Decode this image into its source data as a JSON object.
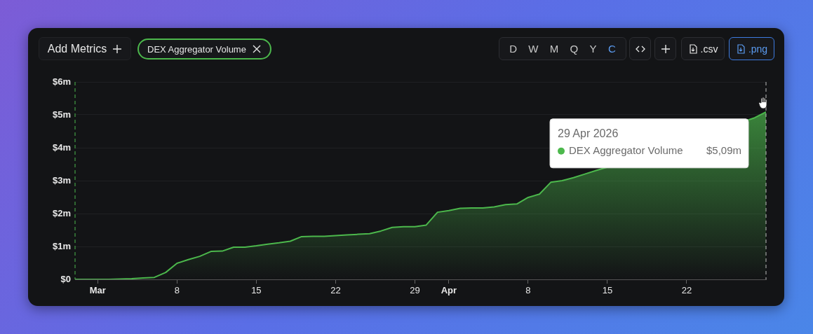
{
  "chart_data": {
    "type": "area",
    "x": [
      "2026-02-27",
      "2026-02-28",
      "2026-03-01",
      "2026-03-02",
      "2026-03-03",
      "2026-03-04",
      "2026-03-05",
      "2026-03-06",
      "2026-03-07",
      "2026-03-08",
      "2026-03-09",
      "2026-03-10",
      "2026-03-11",
      "2026-03-12",
      "2026-03-13",
      "2026-03-14",
      "2026-03-15",
      "2026-03-16",
      "2026-03-17",
      "2026-03-18",
      "2026-03-19",
      "2026-03-20",
      "2026-03-21",
      "2026-03-22",
      "2026-03-23",
      "2026-03-24",
      "2026-03-25",
      "2026-03-26",
      "2026-03-27",
      "2026-03-28",
      "2026-03-29",
      "2026-03-30",
      "2026-03-31",
      "2026-04-01",
      "2026-04-02",
      "2026-04-03",
      "2026-04-04",
      "2026-04-05",
      "2026-04-06",
      "2026-04-07",
      "2026-04-08",
      "2026-04-09",
      "2026-04-10",
      "2026-04-11",
      "2026-04-12",
      "2026-04-13",
      "2026-04-14",
      "2026-04-15",
      "2026-04-16",
      "2026-04-17",
      "2026-04-18",
      "2026-04-19",
      "2026-04-20",
      "2026-04-21",
      "2026-04-22",
      "2026-04-23",
      "2026-04-24",
      "2026-04-25",
      "2026-04-26",
      "2026-04-27",
      "2026-04-28",
      "2026-04-29"
    ],
    "series": [
      {
        "name": "DEX Aggregator Volume",
        "color": "#4cb84c",
        "values": [
          0,
          0,
          0,
          0,
          0.01,
          0.02,
          0.04,
          0.06,
          0.21,
          0.49,
          0.6,
          0.7,
          0.85,
          0.86,
          0.98,
          0.98,
          1.02,
          1.07,
          1.11,
          1.16,
          1.3,
          1.31,
          1.31,
          1.33,
          1.35,
          1.37,
          1.39,
          1.47,
          1.58,
          1.6,
          1.6,
          1.65,
          2.04,
          2.09,
          2.16,
          2.17,
          2.17,
          2.2,
          2.27,
          2.29,
          2.49,
          2.59,
          2.95,
          3.0,
          3.09,
          3.2,
          3.31,
          3.41,
          null,
          null,
          null,
          null,
          null,
          null,
          null,
          null,
          null,
          null,
          null,
          null,
          4.91,
          5.09
        ]
      }
    ],
    "xlim": [
      "2026-02-27",
      "2026-04-29"
    ],
    "xticks": [
      {
        "value": "2026-03-01",
        "label": "Mar"
      },
      {
        "value": "2026-03-08",
        "label": "8"
      },
      {
        "value": "2026-03-15",
        "label": "15"
      },
      {
        "value": "2026-03-22",
        "label": "22"
      },
      {
        "value": "2026-03-29",
        "label": "29"
      },
      {
        "value": "2026-04-01",
        "label": "Apr"
      },
      {
        "value": "2026-04-08",
        "label": "8"
      },
      {
        "value": "2026-04-15",
        "label": "15"
      },
      {
        "value": "2026-04-22",
        "label": "22"
      }
    ],
    "ylim": [
      0,
      6
    ],
    "yticks": [
      {
        "value": 0,
        "label": "$0"
      },
      {
        "value": 1,
        "label": "$1m"
      },
      {
        "value": 2,
        "label": "$2m"
      },
      {
        "value": 3,
        "label": "$3m"
      },
      {
        "value": 4,
        "label": "$4m"
      },
      {
        "value": 5,
        "label": "$5m"
      },
      {
        "value": 6,
        "label": "$6m"
      }
    ],
    "grid": "y",
    "legend": "top right",
    "ref_lines": [
      {
        "axis": "x",
        "value": "2026-02-27",
        "color": "#4cb84c",
        "line_style": "dashed"
      },
      {
        "axis": "x",
        "value": "2026-04-29",
        "color": "#bbbbbb",
        "line_style": "dashed"
      }
    ],
    "annotations": [
      "Add Metrics",
      "D",
      "W",
      "M",
      "Q",
      "Y",
      "C",
      ".csv",
      ".png",
      "29 Apr 2026",
      "$5,09m"
    ]
  }
}
